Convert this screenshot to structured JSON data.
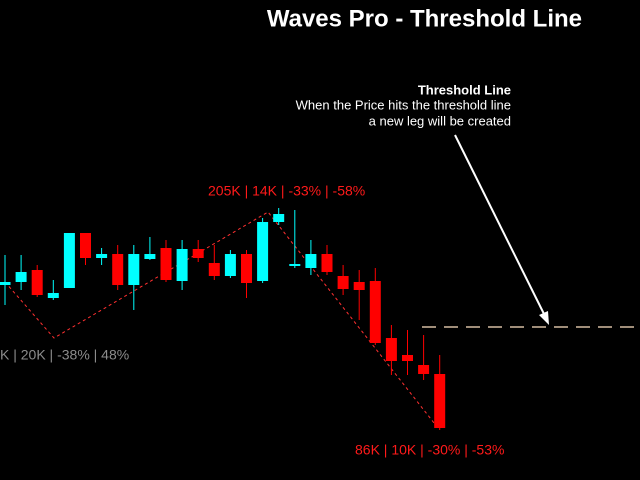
{
  "chart_data": {
    "type": "candlestick",
    "title": "Waves Pro - Threshold Line",
    "ylim": [
      0,
      480
    ],
    "up_color": "#00ffff",
    "down_color": "#ff0000",
    "open": [
      195,
      198,
      210,
      182,
      192,
      247,
      222,
      226,
      195,
      221,
      232,
      199,
      231,
      217,
      204,
      226,
      199,
      258,
      214,
      212,
      226,
      204,
      198,
      199,
      142,
      125,
      115,
      106
    ],
    "high": [
      225,
      225,
      215,
      200,
      247,
      247,
      232,
      235,
      235,
      243,
      240,
      240,
      240,
      235,
      230,
      230,
      262,
      272,
      270,
      240,
      235,
      215,
      210,
      212,
      155,
      150,
      145,
      125
    ],
    "low": [
      175,
      190,
      183,
      180,
      192,
      215,
      215,
      190,
      170,
      220,
      198,
      190,
      218,
      200,
      202,
      182,
      197,
      255,
      212,
      205,
      205,
      185,
      160,
      135,
      105,
      105,
      100,
      50
    ],
    "close": [
      198,
      208,
      185,
      187,
      247,
      222,
      226,
      195,
      226,
      226,
      200,
      231,
      222,
      204,
      226,
      197,
      258,
      266,
      216,
      226,
      208,
      191,
      190,
      137,
      119,
      119,
      106,
      52
    ],
    "threshold": 153,
    "threshold_color": "#ffe4c4",
    "leg_labels": [
      {
        "text": "K | 20K | -38% | 48%",
        "color": "#8c8c8c"
      },
      {
        "text": "205K | 14K | -33% | -58%",
        "color": "#ff1a1a"
      },
      {
        "text": "86K | 10K | -30% | -53%",
        "color": "#ff1a1a"
      }
    ],
    "annotation": {
      "heading": "Threshold Line",
      "lines": [
        "When the Price hits the threshold line",
        "a new leg will be created"
      ]
    }
  }
}
